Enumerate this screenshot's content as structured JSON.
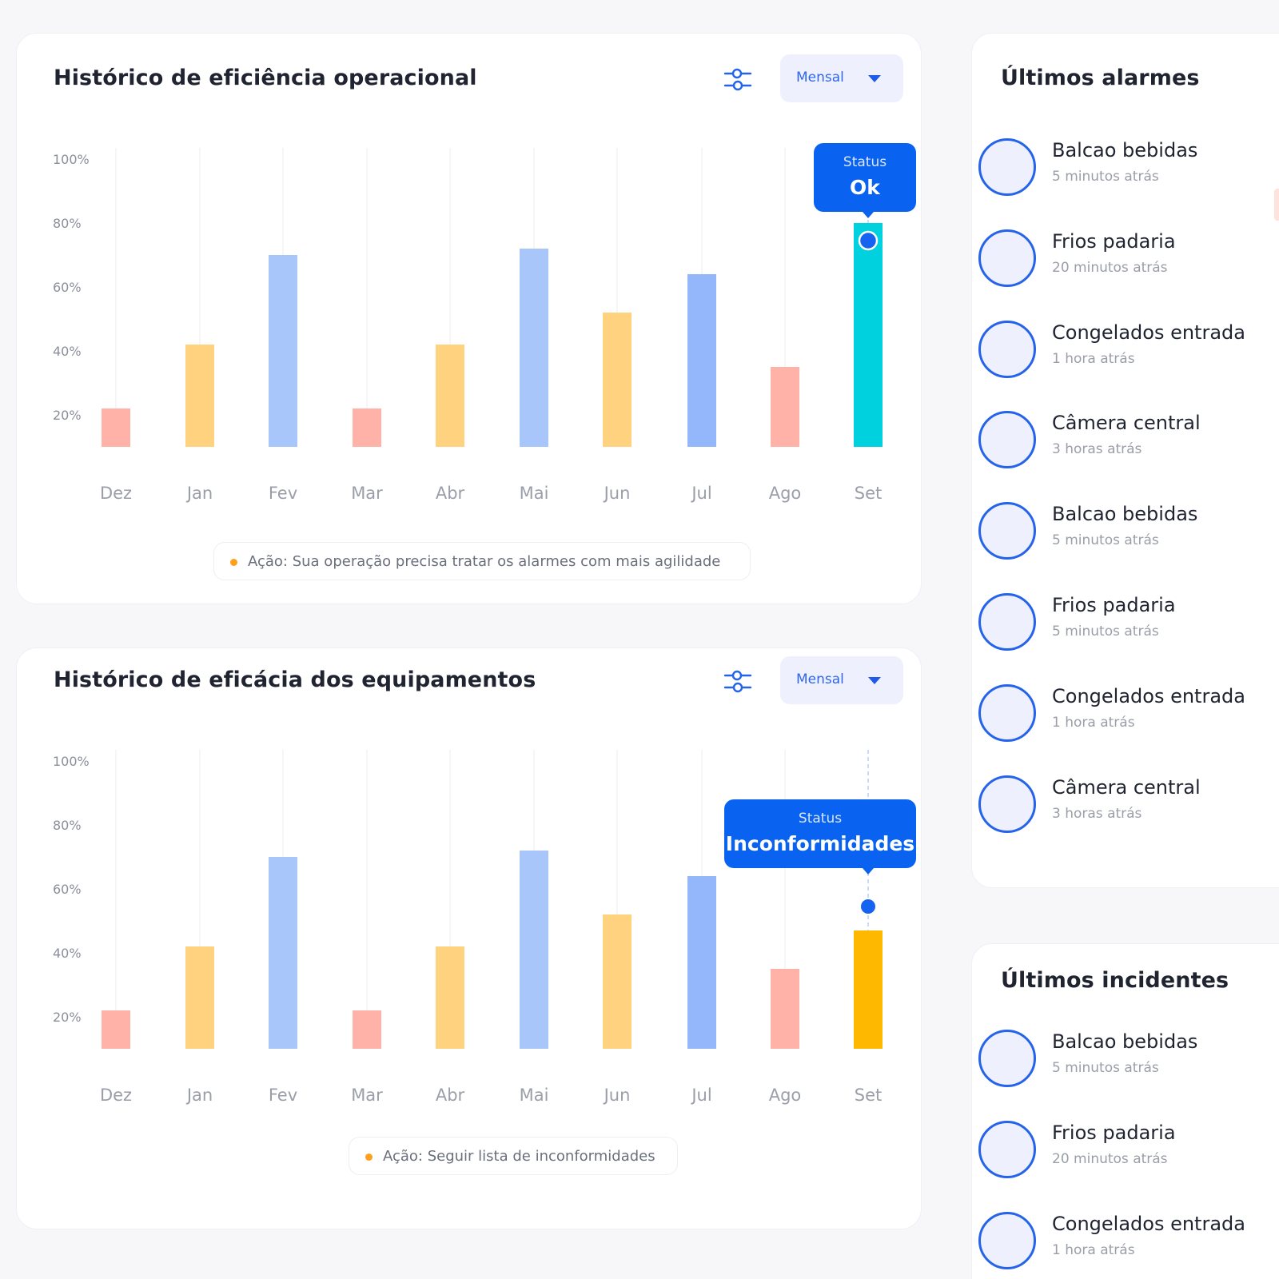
{
  "charts": [
    {
      "title": "Histórico de eficiência operacional",
      "period_label": "Mensal",
      "action_text": "Ação: Sua operação precisa tratar os alarmes com mais agilidade",
      "tooltip": {
        "label": "Status",
        "value": "Ok"
      },
      "highlight_marker": "ring"
    },
    {
      "title": "Histórico de eficácia dos equipamentos",
      "period_label": "Mensal",
      "action_text": "Ação: Seguir lista de inconformidades",
      "tooltip": {
        "label": "Status",
        "value": "Inconformidades"
      },
      "highlight_marker": "dot"
    }
  ],
  "chart_data": [
    {
      "type": "bar",
      "categories": [
        "Dez",
        "Jan",
        "Fev",
        "Mar",
        "Abr",
        "Mai",
        "Jun",
        "Jul",
        "Ago",
        "Set"
      ],
      "values": [
        22,
        42,
        70,
        22,
        42,
        72,
        52,
        64,
        35,
        80
      ],
      "y_ticks": [
        "100%",
        "80%",
        "60%",
        "40%",
        "20%"
      ],
      "ylim": [
        10,
        100
      ],
      "colors": [
        "#ffb3a8",
        "#ffd27f",
        "#a9c6fb",
        "#ffb3a8",
        "#ffd27f",
        "#a9c6fb",
        "#ffd27f",
        "#93b7fa",
        "#ffb3a8",
        "#00d1de"
      ],
      "highlight_index": 9,
      "grid": "vertical",
      "legend": "none"
    },
    {
      "type": "bar",
      "categories": [
        "Dez",
        "Jan",
        "Fev",
        "Mar",
        "Abr",
        "Mai",
        "Jun",
        "Jul",
        "Ago",
        "Set"
      ],
      "values": [
        22,
        42,
        70,
        22,
        42,
        72,
        52,
        64,
        35,
        47
      ],
      "y_ticks": [
        "100%",
        "80%",
        "60%",
        "40%",
        "20%"
      ],
      "ylim": [
        10,
        100
      ],
      "colors": [
        "#ffb3a8",
        "#ffd27f",
        "#a9c6fb",
        "#ffb3a8",
        "#ffd27f",
        "#a9c6fb",
        "#ffd27f",
        "#93b7fa",
        "#ffb3a8",
        "#ffb800"
      ],
      "highlight_index": 9,
      "grid": "vertical",
      "legend": "none"
    }
  ],
  "alarms": {
    "title": "Últimos alarmes",
    "items": [
      {
        "name": "Balcao bebidas",
        "time": "5 minutos atrás"
      },
      {
        "name": "Frios padaria",
        "time": "20 minutos atrás"
      },
      {
        "name": "Congelados entrada",
        "time": "1 hora atrás"
      },
      {
        "name": "Câmera central",
        "time": "3 horas atrás"
      },
      {
        "name": "Balcao bebidas",
        "time": "5 minutos atrás"
      },
      {
        "name": "Frios padaria",
        "time": "5 minutos atrás"
      },
      {
        "name": "Congelados entrada",
        "time": "1 hora atrás"
      },
      {
        "name": "Câmera central",
        "time": "3 horas atrás"
      }
    ]
  },
  "incidents": {
    "title": "Últimos incidentes",
    "items": [
      {
        "name": "Balcao bebidas",
        "time": "5 minutos atrás"
      },
      {
        "name": "Frios padaria",
        "time": "20 minutos atrás"
      },
      {
        "name": "Congelados entrada",
        "time": "1 hora atrás"
      }
    ]
  },
  "colors": {
    "accent": "#0a63f0",
    "background": "#f7f7fa",
    "card": "#ffffff",
    "action_dot": "#ff9f1c"
  },
  "icons": {
    "filter": "sliders-icon",
    "dropdown": "caret-down-icon",
    "avatar": "circle-avatar"
  }
}
